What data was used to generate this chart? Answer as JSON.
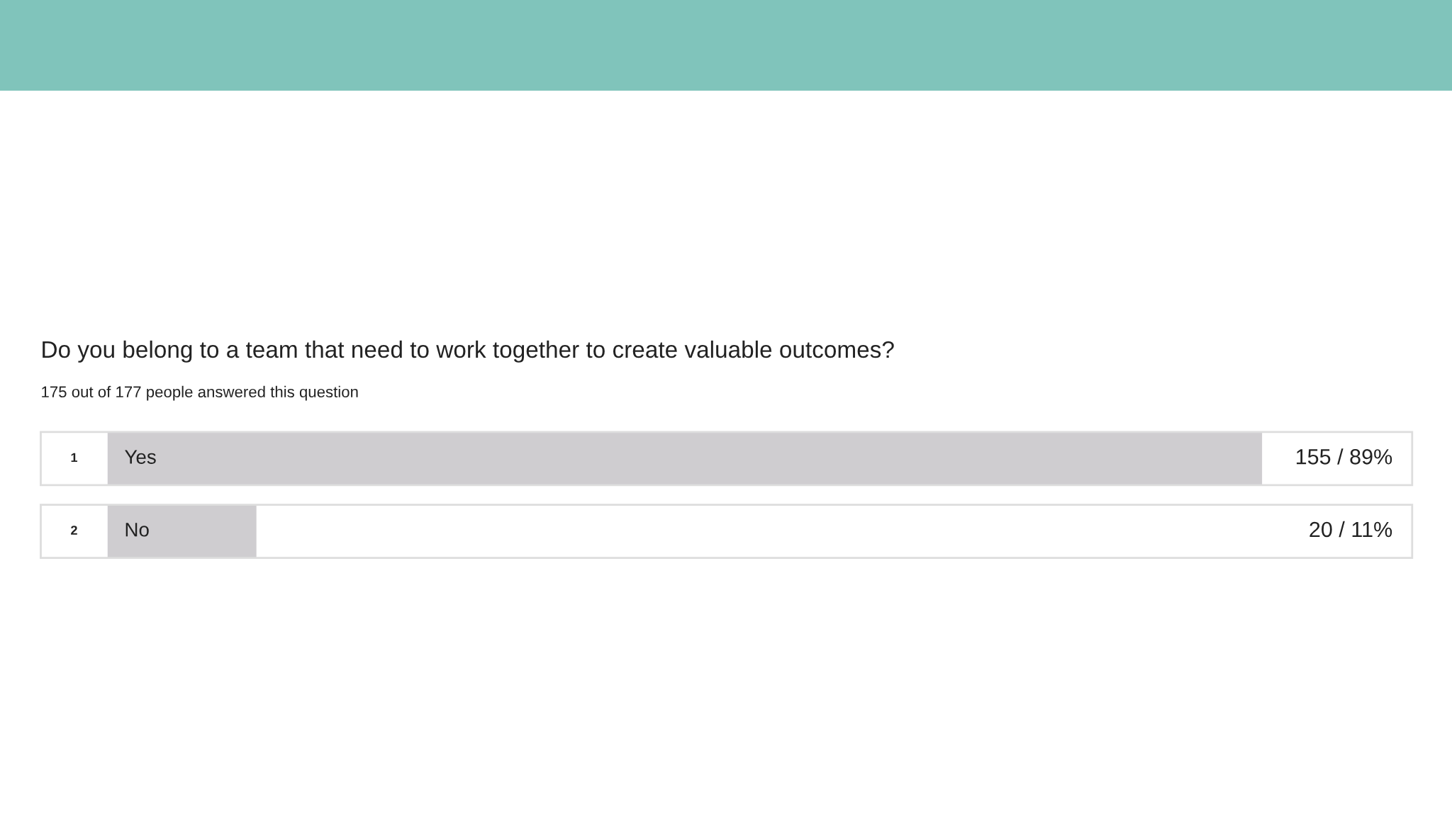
{
  "chart_data": {
    "type": "bar",
    "orientation": "horizontal",
    "title": "Do you belong to a team that need to work together to create valuable outcomes?",
    "subtitle": "175 out of 177 people answered this question",
    "categories": [
      "Yes",
      "No"
    ],
    "values": [
      155,
      20
    ],
    "value_labels": [
      "155 / 89%",
      "20 / 11%"
    ],
    "color": "#cfcdd0",
    "tick_labels": false,
    "annotations": [
      "1",
      "2"
    ]
  }
}
